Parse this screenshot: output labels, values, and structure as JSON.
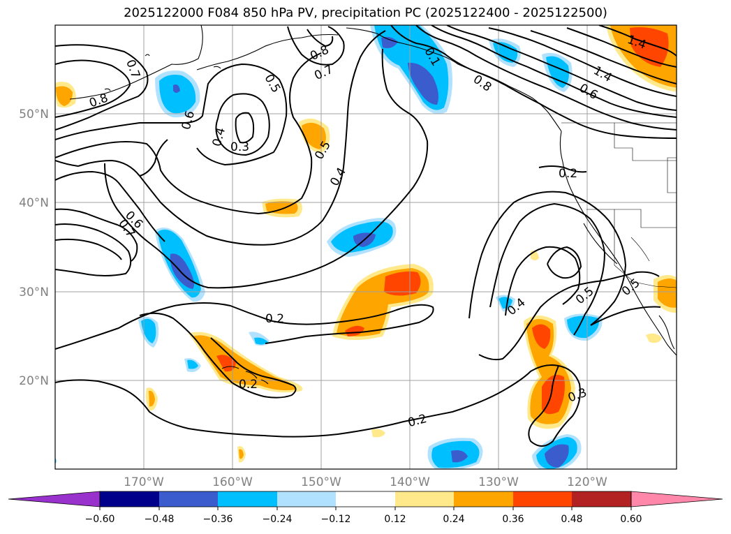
{
  "title": "2025122000 F084 850 hPa PV, precipitation PC (2025122400 - 2025122500)",
  "lat_labels": [
    "50°N",
    "40°N",
    "30°N",
    "20°N"
  ],
  "lon_labels": [
    "170°W",
    "160°W",
    "150°W",
    "140°W",
    "130°W",
    "120°W"
  ],
  "pv_labels": [
    "0.7",
    "0.8",
    "0.8",
    "0.7",
    "0.5",
    "0.6",
    "0.4",
    "0.3",
    "0.5",
    "0.4",
    "0.6",
    "0.7",
    "0.2",
    "0.2",
    "0.2",
    "0.2",
    "0.3",
    "0.4",
    "0.5",
    "0.5",
    "0.1",
    "1.4",
    "1.4",
    "0.6",
    "0.8"
  ],
  "colorbar": {
    "ticks": [
      "−0.60",
      "−0.48",
      "−0.36",
      "−0.24",
      "−0.12",
      "0.12",
      "0.24",
      "0.36",
      "0.48",
      "0.60"
    ],
    "colors": [
      "#9932cc",
      "#00008b",
      "#3a5ccc",
      "#00bfff",
      "#b0e2ff",
      "#ffffff",
      "#ffe98a",
      "#ffa500",
      "#ff4500",
      "#b22222",
      "#ff88aa"
    ]
  }
}
